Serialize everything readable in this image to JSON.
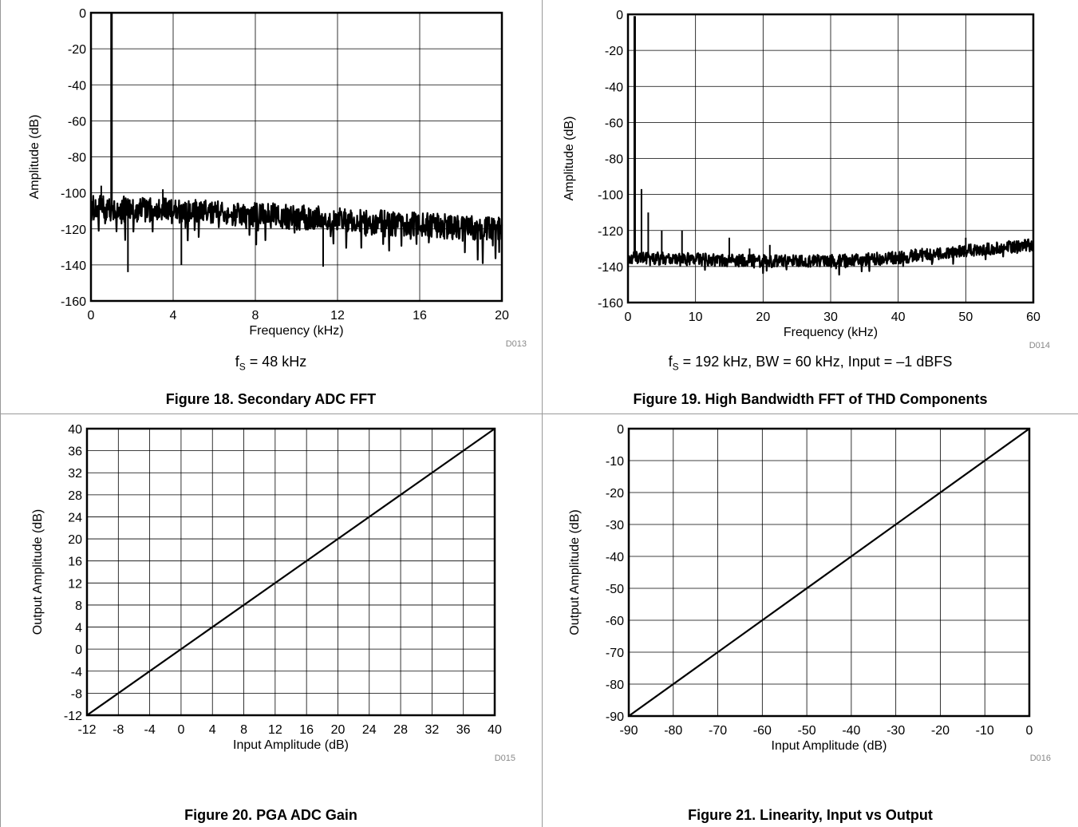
{
  "panels": [
    {
      "id": "fig18",
      "caption": "Figure 18. Secondary ADC FFT",
      "subtitle_prefix": "f",
      "subtitle_sub": "S",
      "subtitle_rest": " = 48 kHz",
      "code": "D013"
    },
    {
      "id": "fig19",
      "caption": "Figure 19. High Bandwidth FFT of THD Components",
      "subtitle_prefix": "f",
      "subtitle_sub": "S",
      "subtitle_rest": " = 192 kHz, BW = 60 kHz, Input = –1 dBFS",
      "code": "D014"
    },
    {
      "id": "fig20",
      "caption": "Figure 20. PGA ADC Gain",
      "code": "D015"
    },
    {
      "id": "fig21",
      "caption": "Figure 21. Linearity, Input vs Output",
      "code": "D016"
    }
  ],
  "chart_data": [
    {
      "type": "line",
      "xlabel": "Frequency (kHz)",
      "ylabel": "Amplitude (dB)",
      "xlim": [
        0,
        20
      ],
      "ylim": [
        -160,
        0
      ],
      "xticks": [
        "0",
        "4",
        "8",
        "12",
        "16",
        "20"
      ],
      "yticks": [
        "0",
        "-20",
        "-40",
        "-60",
        "-80",
        "-100",
        "-120",
        "-140",
        "-160"
      ],
      "grid": true,
      "series": [
        {
          "tone": {
            "x": 1.0,
            "y": 0
          },
          "noise_floor": {
            "x": [
              0,
              4,
              8,
              12,
              16,
              20
            ],
            "y": [
              -108,
              -110,
              -112,
              -115,
              -118,
              -120
            ]
          },
          "spurs": [
            {
              "x": 0.5,
              "y": -96
            },
            {
              "x": 1.8,
              "y": -144
            },
            {
              "x": 3.5,
              "y": -98
            },
            {
              "x": 4.4,
              "y": -140
            },
            {
              "x": 11.3,
              "y": -141
            }
          ]
        }
      ]
    },
    {
      "type": "line",
      "xlabel": "Frequency (kHz)",
      "ylabel": "Amplitude (dB)",
      "xlim": [
        0,
        60
      ],
      "ylim": [
        -160,
        0
      ],
      "xticks": [
        "0",
        "10",
        "20",
        "30",
        "40",
        "50",
        "60"
      ],
      "yticks": [
        "0",
        "-20",
        "-40",
        "-60",
        "-80",
        "-100",
        "-120",
        "-140",
        "-160"
      ],
      "grid": true,
      "series": [
        {
          "tone": {
            "x": 1.0,
            "y": -1
          },
          "noise_floor": {
            "x": [
              0,
              10,
              20,
              30,
              40,
              50,
              60
            ],
            "y": [
              -135,
              -136,
              -137,
              -137,
              -135,
              -131,
              -128
            ]
          },
          "harmonics": [
            {
              "x": 2,
              "y": -97
            },
            {
              "x": 3,
              "y": -110
            },
            {
              "x": 5,
              "y": -120
            },
            {
              "x": 8,
              "y": -120
            },
            {
              "x": 15,
              "y": -124
            },
            {
              "x": 18,
              "y": -130
            },
            {
              "x": 21,
              "y": -128
            },
            {
              "x": 50,
              "y": -124
            }
          ]
        }
      ]
    },
    {
      "type": "line",
      "xlabel": "Input Amplitude (dB)",
      "ylabel": "Output Amplitude (dB)",
      "xlim": [
        -12,
        40
      ],
      "ylim": [
        -12,
        40
      ],
      "xticks": [
        "-12",
        "-8",
        "-4",
        "0",
        "4",
        "8",
        "12",
        "16",
        "20",
        "24",
        "28",
        "32",
        "36",
        "40"
      ],
      "yticks": [
        "40",
        "36",
        "32",
        "28",
        "24",
        "20",
        "16",
        "12",
        "8",
        "4",
        "0",
        "-4",
        "-8",
        "-12"
      ],
      "grid": true,
      "series": [
        {
          "x": [
            -12,
            40
          ],
          "y": [
            -12,
            40
          ]
        }
      ]
    },
    {
      "type": "line",
      "xlabel": "Input Amplitude (dB)",
      "ylabel": "Output Amplitude (dB)",
      "xlim": [
        -90,
        0
      ],
      "ylim": [
        -90,
        0
      ],
      "xticks": [
        "-90",
        "-80",
        "-70",
        "-60",
        "-50",
        "-40",
        "-30",
        "-20",
        "-10",
        "0"
      ],
      "yticks": [
        "0",
        "-10",
        "-20",
        "-30",
        "-40",
        "-50",
        "-60",
        "-70",
        "-80",
        "-90"
      ],
      "grid": true,
      "series": [
        {
          "x": [
            -90,
            0
          ],
          "y": [
            -90,
            0
          ]
        }
      ]
    }
  ]
}
